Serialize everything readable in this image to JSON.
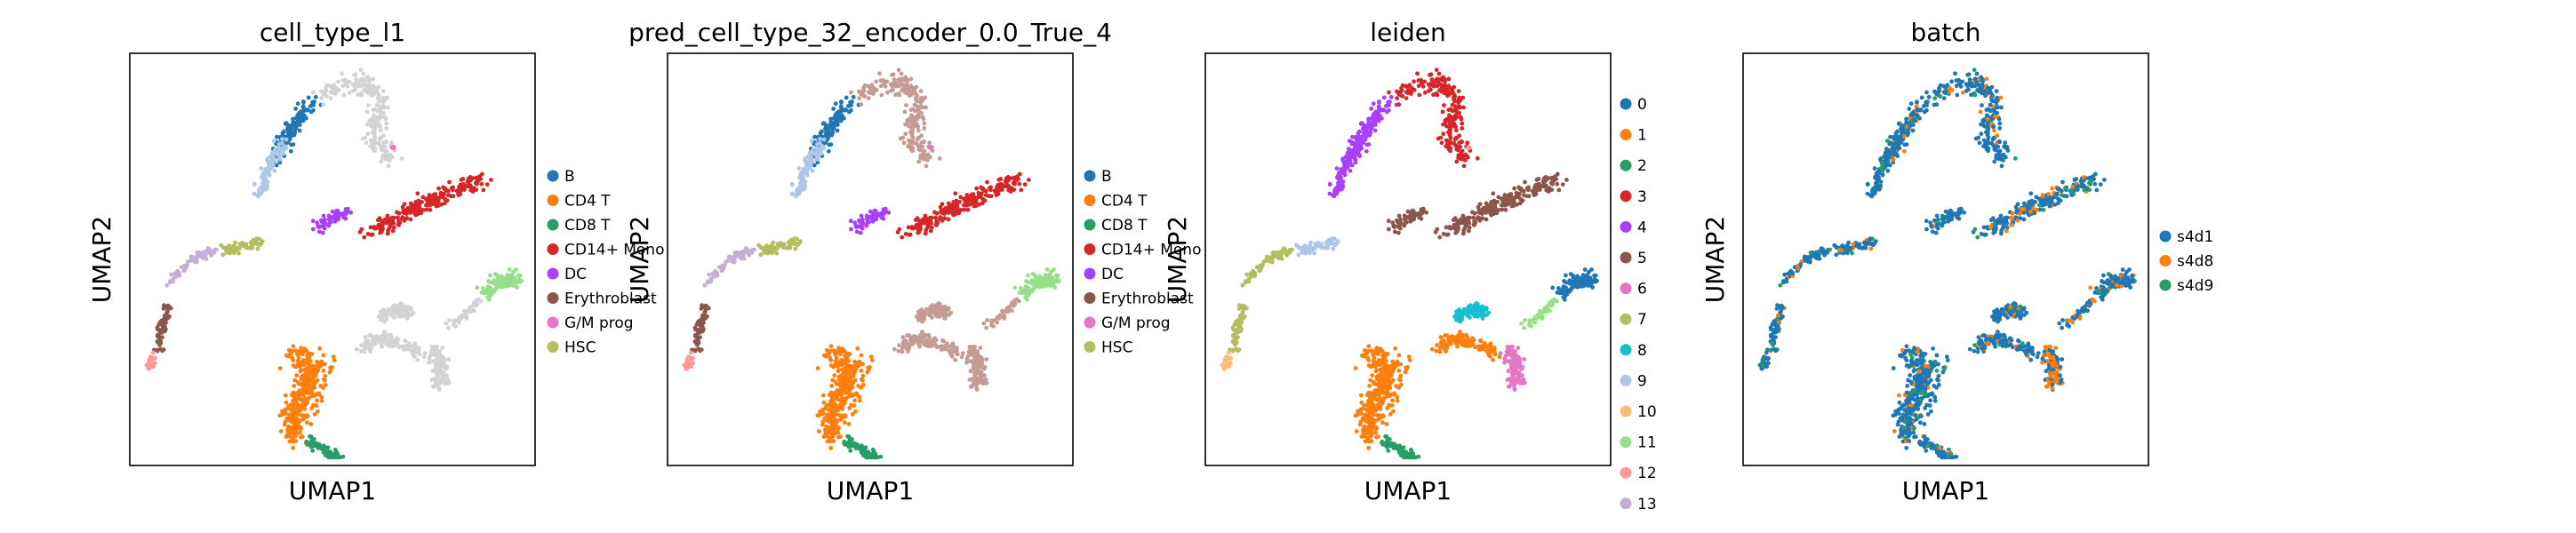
{
  "chart_data": [
    {
      "type": "scatter",
      "title": "cell_type_l1",
      "xlabel": "UMAP1",
      "ylabel": "UMAP2",
      "grid": false,
      "legend_position": "right",
      "legend": [
        {
          "label": "B",
          "color": "#1f77b4"
        },
        {
          "label": "CD4 T",
          "color": "#ff7f0e"
        },
        {
          "label": "CD8 T",
          "color": "#279e68"
        },
        {
          "label": "CD14+ Mono",
          "color": "#d62728"
        },
        {
          "label": "DC",
          "color": "#aa40fc"
        },
        {
          "label": "Erythroblast",
          "color": "#8c564b"
        },
        {
          "label": "G/M prog",
          "color": "#e377c2"
        },
        {
          "label": "HSC",
          "color": "#b5bd61"
        }
      ],
      "unlabeled_color": "#d3d3d3"
    },
    {
      "type": "scatter",
      "title": "pred_cell_type_32_encoder_0.0_True_4",
      "xlabel": "UMAP1",
      "ylabel": "UMAP2",
      "grid": false,
      "legend_position": "right",
      "legend": [
        {
          "label": "B",
          "color": "#1f77b4"
        },
        {
          "label": "CD4 T",
          "color": "#ff7f0e"
        },
        {
          "label": "CD8 T",
          "color": "#279e68"
        },
        {
          "label": "CD14+ Mono",
          "color": "#d62728"
        },
        {
          "label": "DC",
          "color": "#aa40fc"
        },
        {
          "label": "Erythroblast",
          "color": "#8c564b"
        },
        {
          "label": "G/M prog",
          "color": "#e377c2"
        },
        {
          "label": "HSC",
          "color": "#b5bd61"
        }
      ],
      "region_colors": [
        "#c49c94",
        "#aec7e8",
        "#98df8a"
      ]
    },
    {
      "type": "scatter",
      "title": "leiden",
      "xlabel": "UMAP1",
      "ylabel": "UMAP2",
      "grid": false,
      "legend_position": "right",
      "legend": [
        {
          "label": "0",
          "color": "#1f77b4"
        },
        {
          "label": "1",
          "color": "#ff7f0e"
        },
        {
          "label": "2",
          "color": "#279e68"
        },
        {
          "label": "3",
          "color": "#d62728"
        },
        {
          "label": "4",
          "color": "#aa40fc"
        },
        {
          "label": "5",
          "color": "#8c564b"
        },
        {
          "label": "6",
          "color": "#e377c2"
        },
        {
          "label": "7",
          "color": "#b5bd61"
        },
        {
          "label": "8",
          "color": "#17becf"
        },
        {
          "label": "9",
          "color": "#aec7e8"
        },
        {
          "label": "10",
          "color": "#ffbb78"
        },
        {
          "label": "11",
          "color": "#98df8a"
        },
        {
          "label": "12",
          "color": "#ff9896"
        },
        {
          "label": "13",
          "color": "#c5b0d5"
        }
      ]
    },
    {
      "type": "scatter",
      "title": "batch",
      "xlabel": "UMAP1",
      "ylabel": "UMAP2",
      "grid": false,
      "legend_position": "right",
      "legend": [
        {
          "label": "s4d1",
          "color": "#1f77b4"
        },
        {
          "label": "s4d8",
          "color": "#ff7f0e"
        },
        {
          "label": "s4d9",
          "color": "#279e68"
        }
      ]
    }
  ]
}
